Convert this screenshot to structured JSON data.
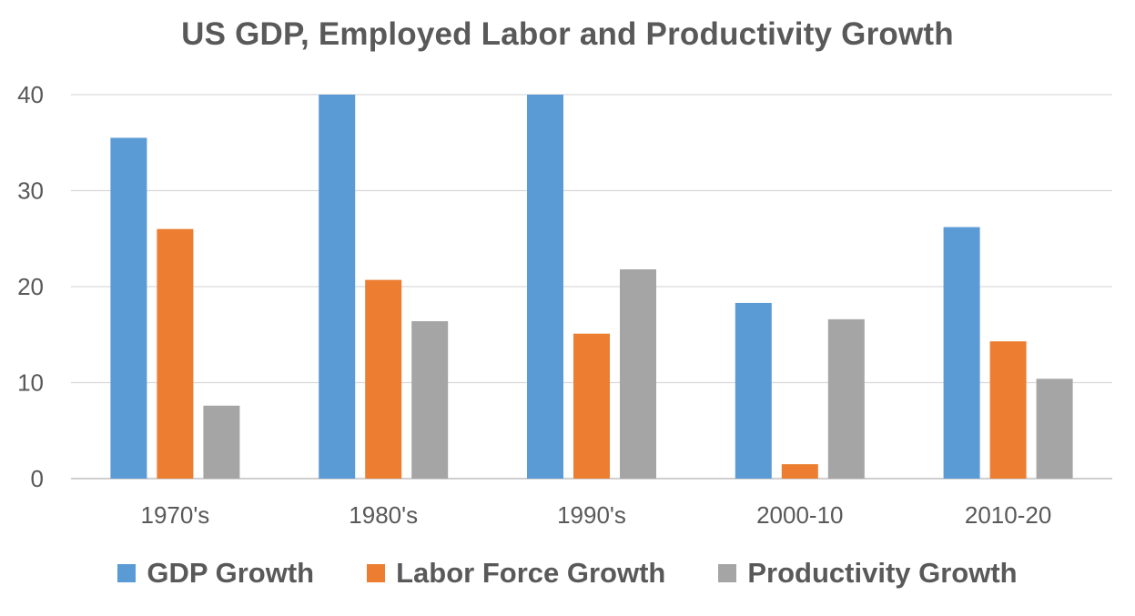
{
  "chart_data": {
    "type": "bar",
    "title": "US GDP, Employed Labor and Productivity Growth",
    "categories": [
      "1970's",
      "1980's",
      "1990's",
      "2000-10",
      "2010-20"
    ],
    "series": [
      {
        "name": "GDP Growth",
        "color": "#5B9BD5",
        "values": [
          35.5,
          40,
          40,
          18.3,
          26.2
        ]
      },
      {
        "name": "Labor Force Growth",
        "color": "#ED7D31",
        "values": [
          26,
          20.7,
          15.1,
          1.5,
          14.3
        ]
      },
      {
        "name": "Productivity Growth",
        "color": "#A5A5A5",
        "values": [
          7.6,
          16.4,
          21.8,
          16.6,
          10.4
        ]
      }
    ],
    "y_ticks": [
      "0",
      "10",
      "20",
      "30",
      "40"
    ],
    "ylim": [
      0,
      40
    ],
    "grid": true,
    "legend_position": "bottom"
  }
}
